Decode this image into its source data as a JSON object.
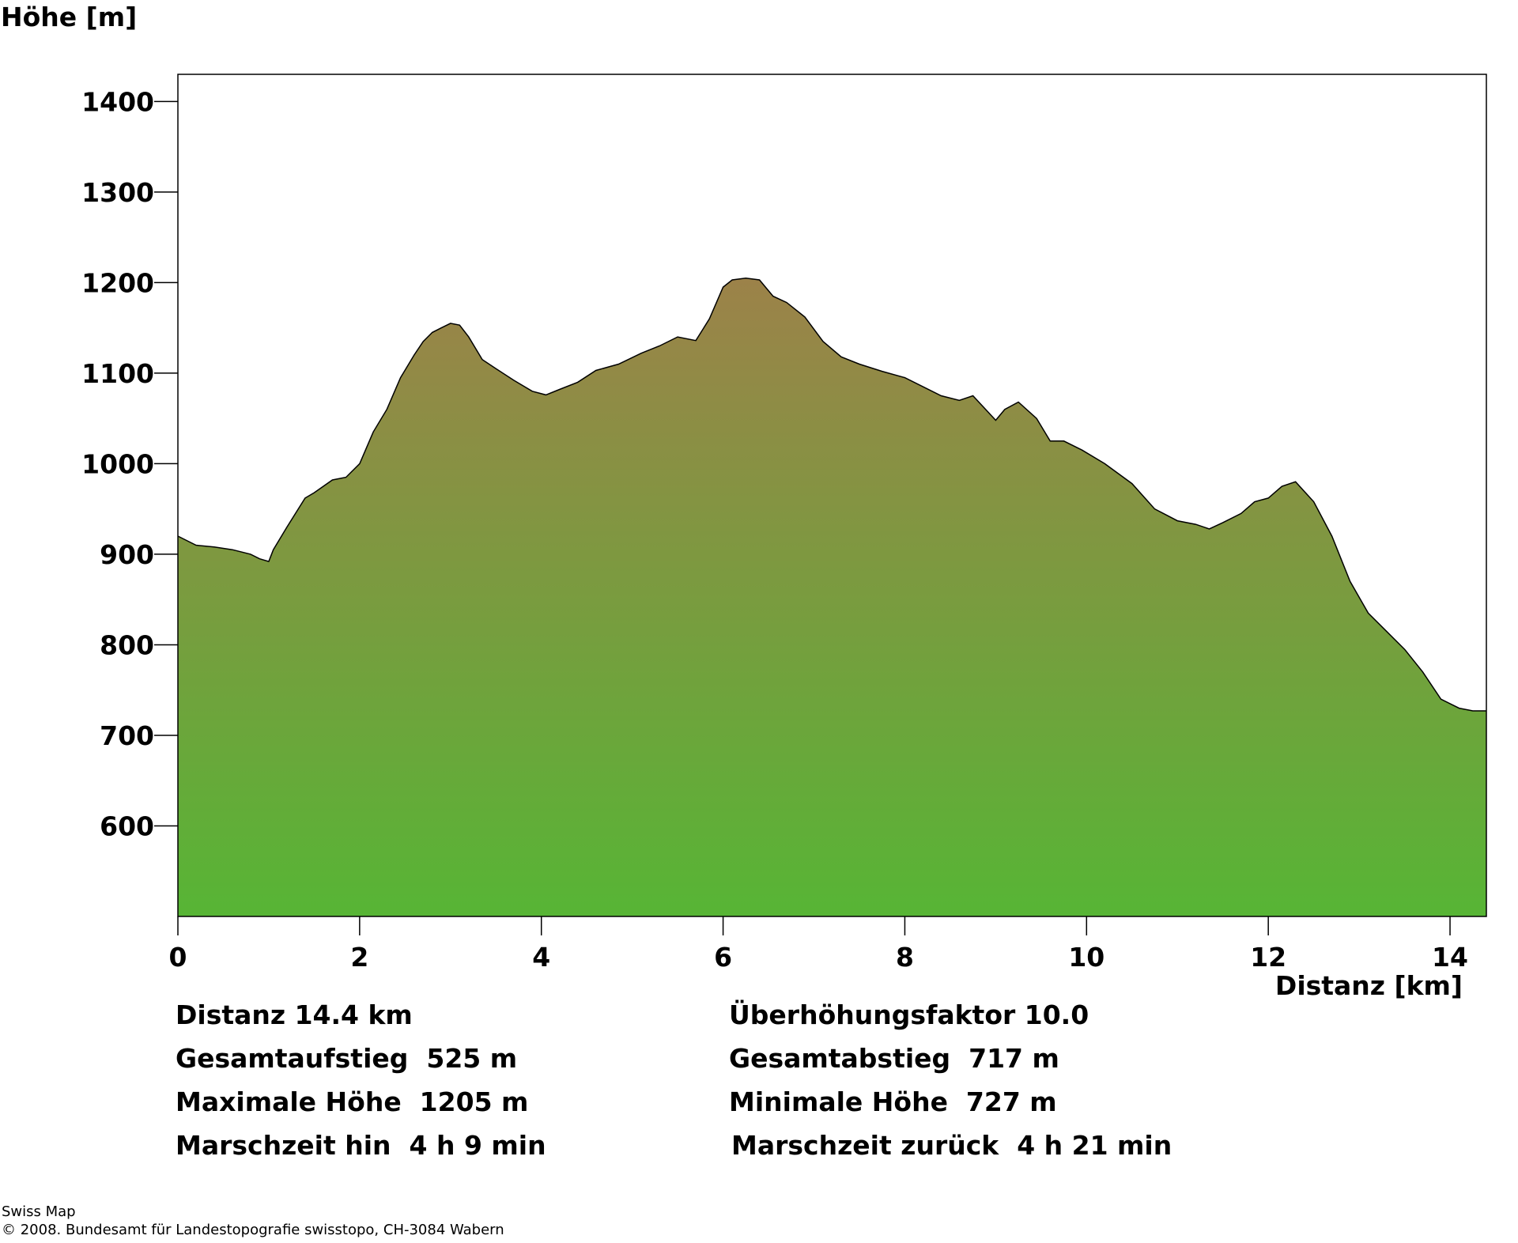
{
  "chart_data": {
    "type": "area",
    "ylabel": "Höhe [m]",
    "xlabel": "Distanz [km]",
    "xlim": [
      0,
      14.4
    ],
    "ylim": [
      500,
      1430
    ],
    "x_ticks": [
      0,
      2,
      4,
      6,
      8,
      10,
      12,
      14
    ],
    "y_ticks": [
      600,
      700,
      800,
      900,
      1000,
      1100,
      1200,
      1300,
      1400
    ],
    "grid": false,
    "colors": {
      "top": "#9c8249",
      "bottom": "#57b535",
      "outline": "#000000"
    },
    "series": [
      {
        "x": [
          0,
          0.2,
          0.4,
          0.6,
          0.8,
          0.9,
          1.0,
          1.05,
          1.2,
          1.4,
          1.5,
          1.7,
          1.85,
          2.0,
          2.15,
          2.3,
          2.45,
          2.6,
          2.7,
          2.8,
          2.9,
          3.0,
          3.1,
          3.2,
          3.35,
          3.5,
          3.7,
          3.9,
          4.05,
          4.2,
          4.4,
          4.6,
          4.85,
          5.1,
          5.3,
          5.5,
          5.7,
          5.85,
          6.0,
          6.1,
          6.25,
          6.4,
          6.55,
          6.7,
          6.9,
          7.1,
          7.3,
          7.5,
          7.75,
          8.0,
          8.2,
          8.4,
          8.6,
          8.75,
          9.0,
          9.1,
          9.25,
          9.45,
          9.6,
          9.75,
          9.95,
          10.2,
          10.5,
          10.75,
          11.0,
          11.2,
          11.35,
          11.5,
          11.7,
          11.85,
          12.0,
          12.15,
          12.3,
          12.5,
          12.7,
          12.9,
          13.1,
          13.3,
          13.5,
          13.7,
          13.9,
          14.1,
          14.25,
          14.4
        ],
        "y": [
          920,
          910,
          908,
          905,
          900,
          895,
          892,
          905,
          930,
          962,
          968,
          982,
          985,
          1000,
          1035,
          1060,
          1095,
          1120,
          1135,
          1145,
          1150,
          1155,
          1153,
          1140,
          1115,
          1105,
          1092,
          1080,
          1076,
          1082,
          1090,
          1103,
          1110,
          1122,
          1130,
          1140,
          1136,
          1160,
          1195,
          1203,
          1205,
          1203,
          1185,
          1178,
          1162,
          1135,
          1118,
          1110,
          1102,
          1095,
          1085,
          1075,
          1070,
          1075,
          1048,
          1060,
          1068,
          1050,
          1025,
          1025,
          1015,
          1000,
          978,
          950,
          937,
          933,
          928,
          935,
          945,
          958,
          962,
          975,
          980,
          958,
          920,
          870,
          835,
          815,
          795,
          770,
          740,
          730,
          727,
          727
        ]
      }
    ]
  },
  "stats": {
    "distance": "Distanz 14.4 km",
    "factor": "Überhöhungsfaktor 10.0",
    "ascent": "Gesamtaufstieg  525 m",
    "descent": "Gesamtabstieg  717 m",
    "max_height": "Maximale Höhe  1205 m",
    "min_height": "Minimale Höhe  727 m",
    "time_forward": "Marschzeit hin  4 h 9 min",
    "time_back": "Marschzeit zurück  4 h 21 min"
  },
  "credits": {
    "source": "Swiss Map",
    "copyright": "© 2008. Bundesamt für Landestopografie swisstopo, CH-3084 Wabern"
  }
}
